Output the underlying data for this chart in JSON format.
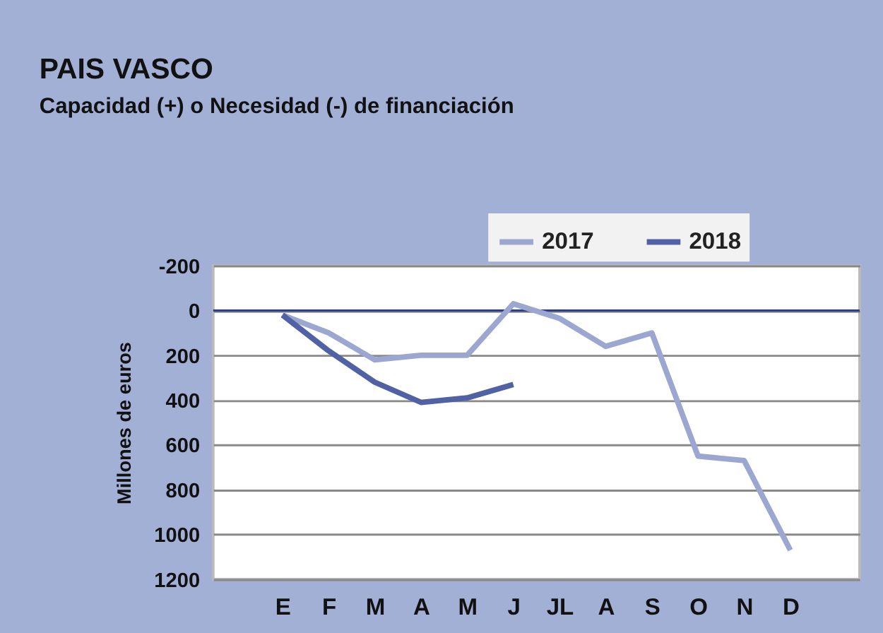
{
  "chart_data": {
    "type": "line",
    "title": "PAIS VASCO",
    "subtitle": "Capacidad (+) o Necesidad (-) de financiación",
    "ylabel": "Millones de euros",
    "categories": [
      "E",
      "F",
      "M",
      "A",
      "M",
      "J",
      "JL",
      "A",
      "S",
      "O",
      "N",
      "D"
    ],
    "series": [
      {
        "name": "2017",
        "color": "#9ba7d1",
        "values": [
          20,
          100,
          220,
          200,
          200,
          -30,
          35,
          160,
          100,
          650,
          670,
          1070
        ]
      },
      {
        "name": "2018",
        "color": "#5062a5",
        "values": [
          20,
          180,
          320,
          410,
          390,
          330,
          null,
          null,
          null,
          null,
          null,
          null
        ]
      }
    ],
    "ylim": [
      1200,
      -200
    ],
    "yticks": [
      -200,
      0,
      200,
      400,
      600,
      800,
      1000,
      1200
    ],
    "ref_lines": [
      {
        "axis": "y",
        "value": 0,
        "color": "#2e3f86"
      }
    ],
    "grid": "y",
    "legend": "top right",
    "marker": "none",
    "line_style": "solid"
  }
}
